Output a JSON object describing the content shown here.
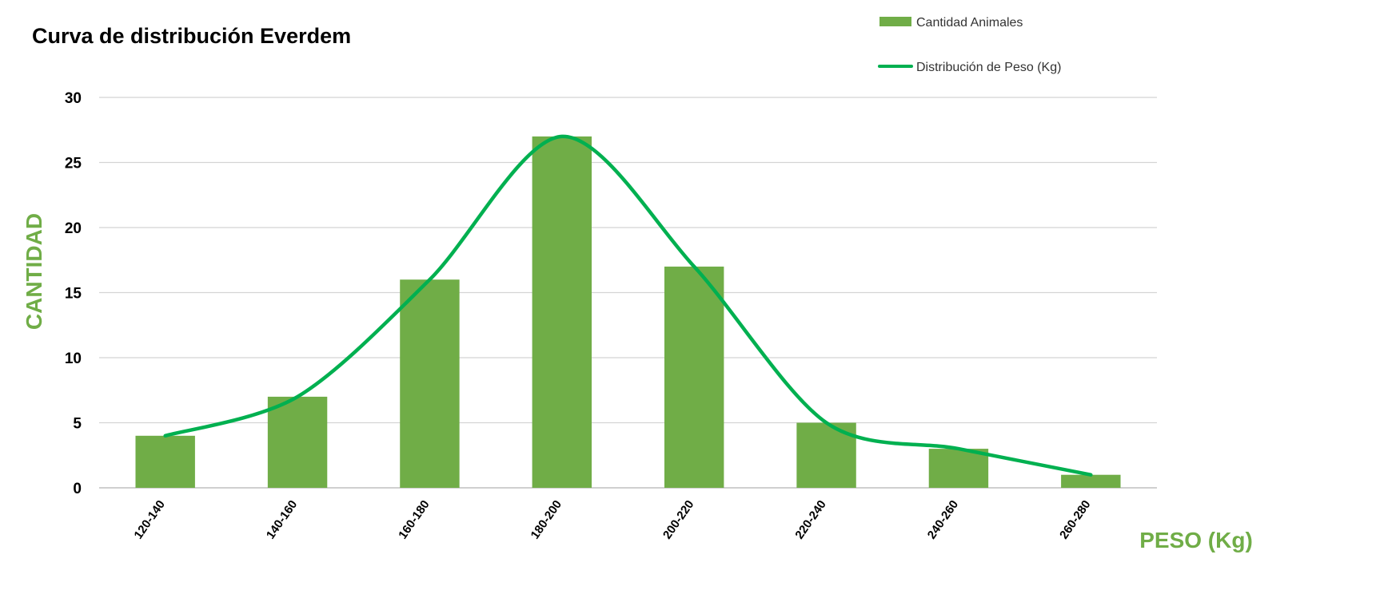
{
  "chart_data": {
    "type": "bar",
    "title": "Curva de distribución Everdem",
    "xlabel": "PESO (Kg)",
    "ylabel": "CANTIDAD",
    "categories": [
      "120-140",
      "140-160",
      "160-180",
      "180-200",
      "200-220",
      "220-240",
      "240-260",
      "260-280"
    ],
    "series": [
      {
        "name": "Cantidad Animales",
        "kind": "bar",
        "color": "#70ad47",
        "values": [
          4,
          7,
          16,
          27,
          17,
          5,
          3,
          1
        ]
      },
      {
        "name": "Distribución de Peso (Kg)",
        "kind": "line",
        "color": "#00b050",
        "values": [
          4,
          7,
          16,
          27,
          17,
          5,
          3,
          1
        ]
      }
    ],
    "ylim": [
      0,
      30
    ],
    "yticks": [
      0,
      5,
      10,
      15,
      20,
      25,
      30
    ],
    "grid": true,
    "legend": "top-right",
    "label_color": "#70ad47"
  }
}
